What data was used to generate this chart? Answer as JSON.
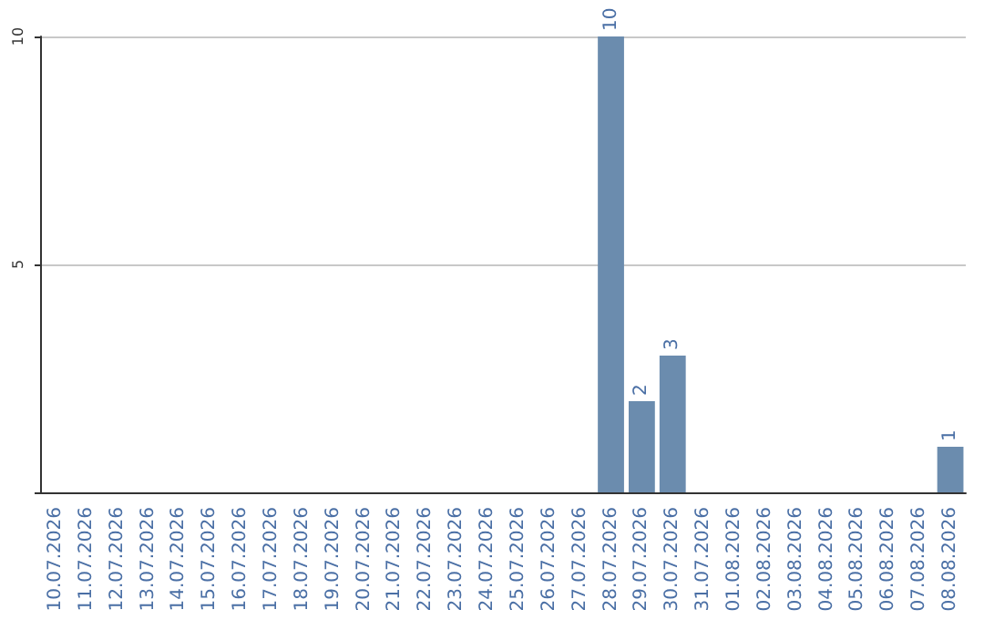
{
  "chart_data": {
    "type": "bar",
    "categories": [
      "10.07.2026",
      "11.07.2026",
      "12.07.2026",
      "13.07.2026",
      "14.07.2026",
      "15.07.2026",
      "16.07.2026",
      "17.07.2026",
      "18.07.2026",
      "19.07.2026",
      "20.07.2026",
      "21.07.2026",
      "22.07.2026",
      "23.07.2026",
      "24.07.2026",
      "25.07.2026",
      "26.07.2026",
      "27.07.2026",
      "28.07.2026",
      "29.07.2026",
      "30.07.2026",
      "31.07.2026",
      "01.08.2026",
      "02.08.2026",
      "03.08.2026",
      "04.08.2026",
      "05.08.2026",
      "06.08.2026",
      "07.08.2026",
      "08.08.2026"
    ],
    "values": [
      0,
      0,
      0,
      0,
      0,
      0,
      0,
      0,
      0,
      0,
      0,
      0,
      0,
      0,
      0,
      0,
      0,
      0,
      10,
      2,
      3,
      0,
      0,
      0,
      0,
      0,
      0,
      0,
      0,
      1
    ],
    "value_labels": [
      null,
      null,
      null,
      null,
      null,
      null,
      null,
      null,
      null,
      null,
      null,
      null,
      null,
      null,
      null,
      null,
      null,
      null,
      "10",
      "2",
      "3",
      null,
      null,
      null,
      null,
      null,
      null,
      null,
      null,
      "1"
    ],
    "color": "#6b8cae",
    "ylim": [
      0,
      10
    ],
    "yticks": [
      {
        "value": 0,
        "label": null
      },
      5,
      10
    ],
    "grid": "y"
  }
}
